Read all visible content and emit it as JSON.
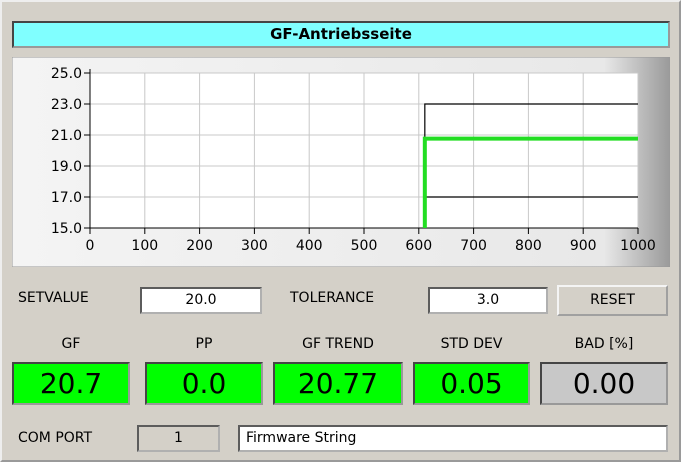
{
  "title": "GF-Antriebsseite",
  "chart_data": {
    "type": "line",
    "x": [
      611,
      611,
      1000
    ],
    "series": [
      {
        "color": "#000000",
        "values": [
          15,
          23,
          23
        ]
      },
      {
        "color": "#000000",
        "values": [
          15,
          17,
          17
        ]
      },
      {
        "color": "#22dd22",
        "values": [
          15,
          20.77,
          20.77
        ]
      }
    ],
    "xlim": [
      0,
      1000
    ],
    "xticks": [
      0,
      100,
      200,
      300,
      400,
      500,
      600,
      700,
      800,
      900,
      1000
    ],
    "ylim": [
      15,
      25
    ],
    "yticks": [
      {
        "value": 15,
        "label": "15.0"
      },
      {
        "value": 17,
        "label": "17.0"
      },
      {
        "value": 19,
        "label": "19.0"
      },
      {
        "value": 21,
        "label": "21.0"
      },
      {
        "value": 23,
        "label": "23.0"
      },
      {
        "value": 25,
        "label": "25.0"
      }
    ],
    "grid": true
  },
  "settings": {
    "setvalue_label": "SETVALUE",
    "setvalue": "20.0",
    "tolerance_label": "TOLERANCE",
    "tolerance": "3.0",
    "reset": "RESET"
  },
  "readouts": [
    {
      "label": "GF",
      "value": "20.7",
      "color": "#00ff00"
    },
    {
      "label": "PP",
      "value": "0.0",
      "color": "#00ff00"
    },
    {
      "label": "GF TREND",
      "value": "20.77",
      "color": "#00ff00"
    },
    {
      "label": "STD DEV",
      "value": "0.05",
      "color": "#00ff00"
    },
    {
      "label": "BAD [%]",
      "value": "0.00",
      "color": "#c8c8c8"
    }
  ],
  "com": {
    "label": "COM PORT",
    "port": "1",
    "firmware": "Firmware String"
  }
}
